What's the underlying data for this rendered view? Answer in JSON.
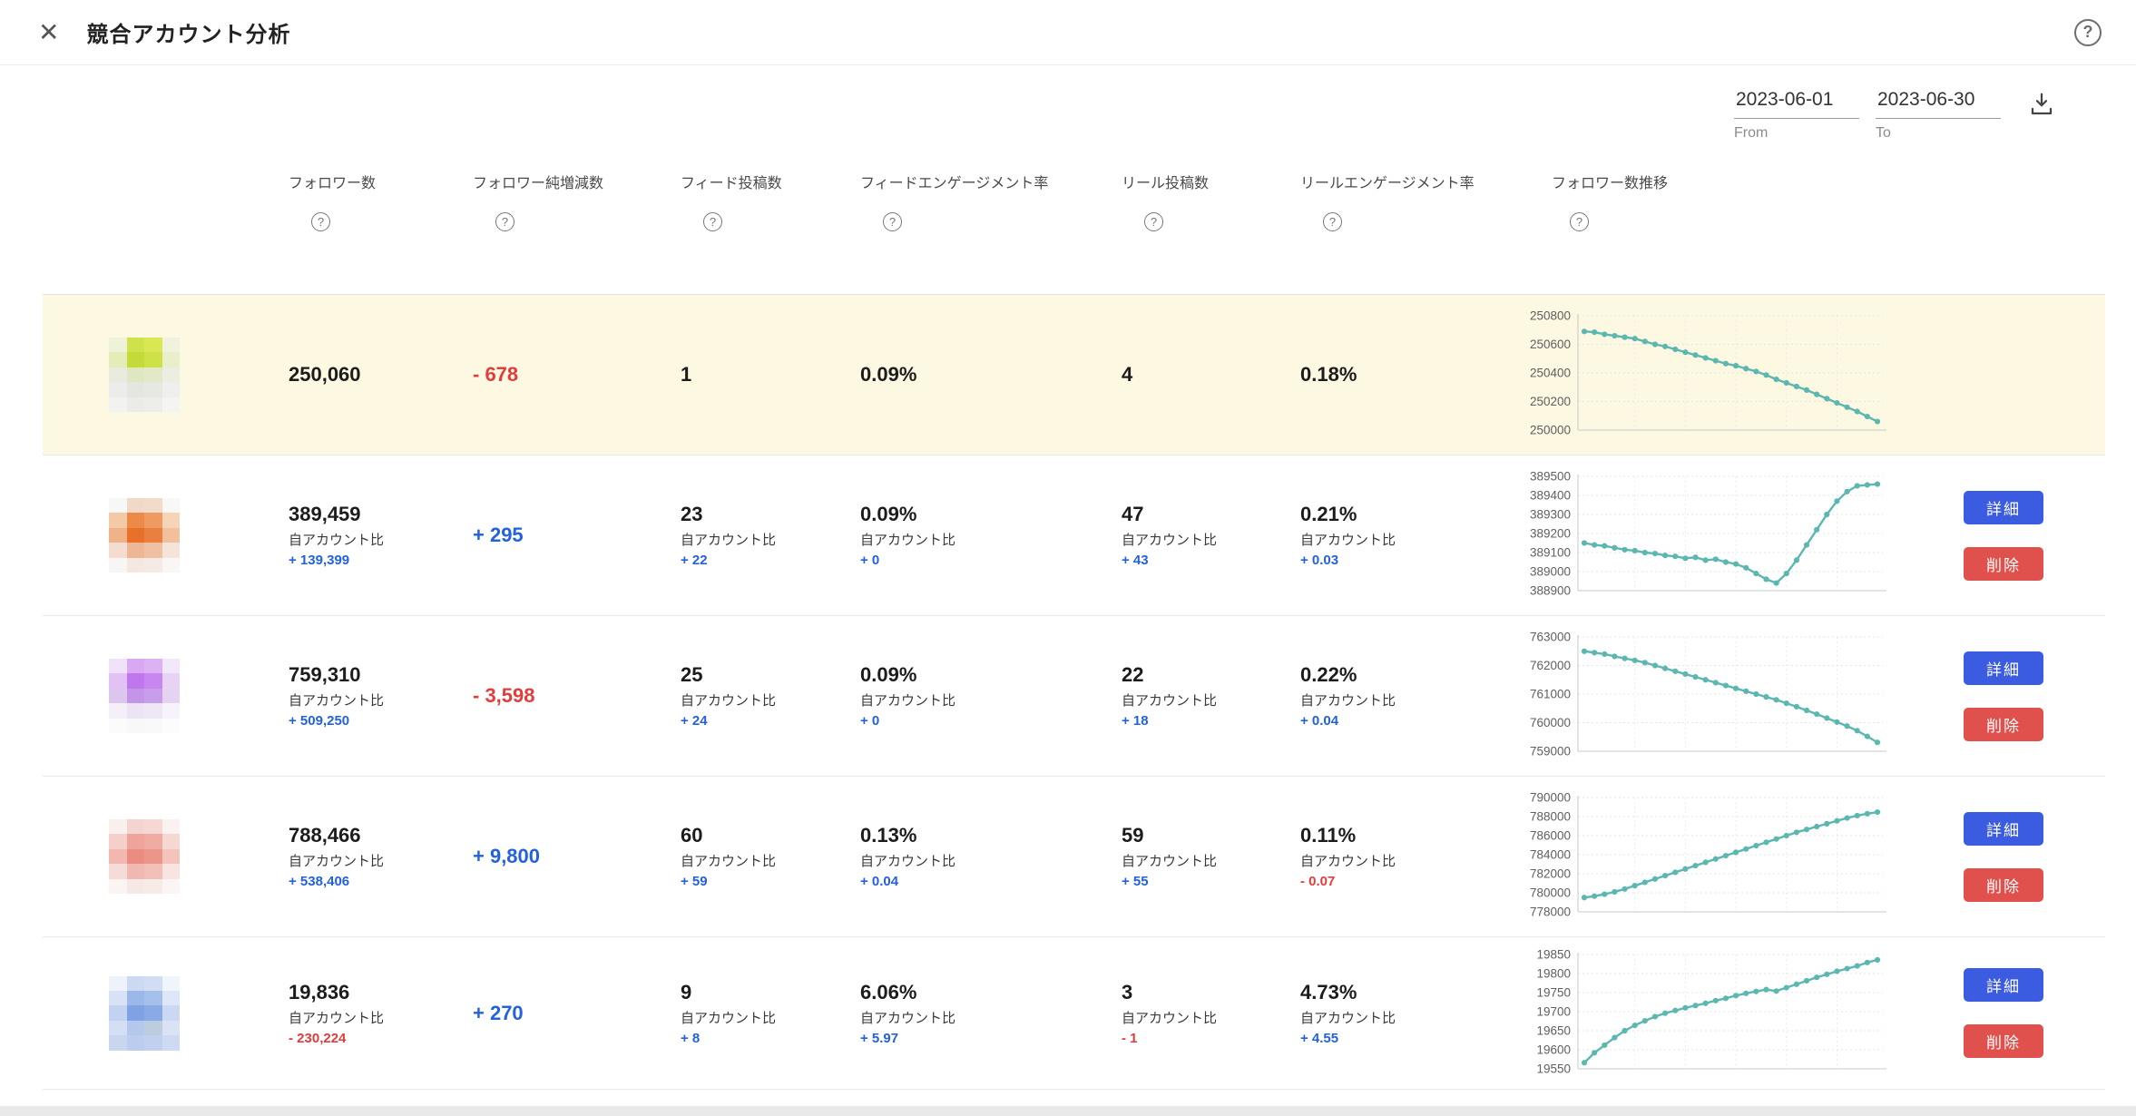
{
  "header": {
    "title": "競合アカウント分析"
  },
  "toolbar": {
    "date_from": "2023-06-01",
    "date_to": "2023-06-30",
    "from_label": "From",
    "to_label": "To"
  },
  "columns": [
    "フォロワー数",
    "フォロワー純増減数",
    "フィード投稿数",
    "フィードエンゲージメント率",
    "リール投稿数",
    "リールエンゲージメント率",
    "フォロワー数推移"
  ],
  "labels": {
    "vs_account": "自アカウント比",
    "detail": "詳細",
    "delete": "削除",
    "help": "?"
  },
  "colors": {
    "accent_blue": "#2361dd",
    "negative_red": "#e23c3c",
    "chart_line": "#5cb7b0",
    "highlight_row": "#fdf8e1",
    "button_blue": "#3b5ce0",
    "button_red": "#e0504d"
  },
  "rows": [
    {
      "type": "own",
      "followers": "250,060",
      "net_change": "- 678",
      "feed_posts": "1",
      "feed_engagement": "0.09%",
      "reel_posts": "4",
      "reel_engagement": "0.18%"
    },
    {
      "followers": "389,459",
      "followers_delta": "+ 139,399",
      "net_change": "+ 295",
      "feed_posts": "23",
      "feed_posts_delta": "+ 22",
      "feed_engagement": "0.09%",
      "feed_engagement_delta": "+ 0",
      "reel_posts": "47",
      "reel_posts_delta": "+ 43",
      "reel_engagement": "0.21%",
      "reel_engagement_delta": "+ 0.03"
    },
    {
      "followers": "759,310",
      "followers_delta": "+ 509,250",
      "net_change": "- 3,598",
      "feed_posts": "25",
      "feed_posts_delta": "+ 24",
      "feed_engagement": "0.09%",
      "feed_engagement_delta": "+ 0",
      "reel_posts": "22",
      "reel_posts_delta": "+ 18",
      "reel_engagement": "0.22%",
      "reel_engagement_delta": "+ 0.04"
    },
    {
      "followers": "788,466",
      "followers_delta": "+ 538,406",
      "net_change": "+ 9,800",
      "feed_posts": "60",
      "feed_posts_delta": "+ 59",
      "feed_engagement": "0.13%",
      "feed_engagement_delta": "+ 0.04",
      "reel_posts": "59",
      "reel_posts_delta": "+ 55",
      "reel_engagement": "0.11%",
      "reel_engagement_delta": "- 0.07"
    },
    {
      "followers": "19,836",
      "followers_delta": "- 230,224",
      "net_change": "+ 270",
      "feed_posts": "9",
      "feed_posts_delta": "+ 8",
      "feed_engagement": "6.06%",
      "feed_engagement_delta": "+ 5.97",
      "reel_posts": "3",
      "reel_posts_delta": "- 1",
      "reel_engagement": "4.73%",
      "reel_engagement_delta": "+ 4.55"
    }
  ],
  "chart_data": [
    {
      "type": "line",
      "title": "フォロワー数推移",
      "ylim": [
        250000,
        250800
      ],
      "ticks": [
        250800,
        250600,
        250400,
        250200,
        250000
      ],
      "values": [
        250690,
        250685,
        250670,
        250660,
        250650,
        250640,
        250620,
        250600,
        250585,
        250565,
        250545,
        250525,
        250505,
        250485,
        250465,
        250450,
        250430,
        250410,
        250385,
        250355,
        250330,
        250305,
        250280,
        250250,
        250220,
        250190,
        250160,
        250130,
        250095,
        250060
      ]
    },
    {
      "type": "line",
      "title": "フォロワー数推移",
      "ylim": [
        388900,
        389500
      ],
      "ticks": [
        389500,
        389400,
        389300,
        389200,
        389100,
        389000,
        388900
      ],
      "values": [
        389150,
        389140,
        389135,
        389125,
        389115,
        389110,
        389100,
        389095,
        389085,
        389080,
        389070,
        389075,
        389060,
        389065,
        389050,
        389040,
        389020,
        388990,
        388960,
        388940,
        388990,
        389060,
        389140,
        389220,
        389300,
        389370,
        389420,
        389450,
        389455,
        389459
      ]
    },
    {
      "type": "line",
      "title": "フォロワー数推移",
      "ylim": [
        759000,
        763000
      ],
      "ticks": [
        763000,
        762000,
        761000,
        760000,
        759000
      ],
      "values": [
        762500,
        762450,
        762400,
        762320,
        762250,
        762180,
        762100,
        762000,
        761900,
        761800,
        761700,
        761600,
        761500,
        761400,
        761300,
        761200,
        761100,
        761000,
        760900,
        760800,
        760680,
        760560,
        760430,
        760300,
        760160,
        760020,
        759880,
        759720,
        759520,
        759310
      ]
    },
    {
      "type": "line",
      "title": "フォロワー数推移",
      "ylim": [
        778000,
        790000
      ],
      "ticks": [
        790000,
        788000,
        786000,
        784000,
        782000,
        780000,
        778000
      ],
      "values": [
        779500,
        779650,
        779850,
        780100,
        780400,
        780750,
        781100,
        781450,
        781800,
        782150,
        782500,
        782850,
        783200,
        783550,
        783900,
        784250,
        784600,
        784950,
        785300,
        785650,
        786000,
        786350,
        786650,
        786950,
        787250,
        787550,
        787850,
        788100,
        788300,
        788466
      ]
    },
    {
      "type": "line",
      "title": "フォロワー数推移",
      "ylim": [
        19550,
        19850
      ],
      "ticks": [
        19850,
        19800,
        19750,
        19700,
        19650,
        19600,
        19550
      ],
      "values": [
        19566,
        19592,
        19612,
        19632,
        19650,
        19664,
        19676,
        19687,
        19696,
        19703,
        19710,
        19716,
        19722,
        19729,
        19735,
        19742,
        19748,
        19753,
        19758,
        19754,
        19763,
        19772,
        19781,
        19790,
        19798,
        19806,
        19813,
        19820,
        19829,
        19836
      ]
    }
  ],
  "avatars": [
    [
      [
        "#eef2d8",
        "#cfe24c",
        "#d9e852",
        "#f0f2dd"
      ],
      [
        "#e4ecb8",
        "#c3da38",
        "#cee146",
        "#e9eecb"
      ],
      [
        "#e9ebdf",
        "#dfe6c2",
        "#e2e8c8",
        "#eceee2"
      ],
      [
        "#ececea",
        "#e4e6e0",
        "#e6e8e2",
        "#efefed"
      ],
      [
        "#f2f2f0",
        "#ebebe8",
        "#ededea",
        "#f4f4f2"
      ]
    ],
    [
      [
        "#f7f7f5",
        "#f0d9c6",
        "#f2dcc9",
        "#f8f8f6"
      ],
      [
        "#f3c9a8",
        "#ec8a4a",
        "#ee9a60",
        "#f5d4b8"
      ],
      [
        "#f0b288",
        "#e8702a",
        "#ea8040",
        "#f2c09c"
      ],
      [
        "#f4ddd0",
        "#eeb694",
        "#efc0a2",
        "#f6e4da"
      ],
      [
        "#f8f6f4",
        "#f4e8e0",
        "#f5eae4",
        "#f9f7f5"
      ]
    ],
    [
      [
        "#f0e2f8",
        "#d8a8f2",
        "#dcb2f4",
        "#f2e8fa"
      ],
      [
        "#e2c2f4",
        "#c077ee",
        "#c886f0",
        "#e8d2f6"
      ],
      [
        "#dcc6ee",
        "#c394e8",
        "#c89eea",
        "#e4d4f2"
      ],
      [
        "#f4f0f8",
        "#ece4f4",
        "#eee8f6",
        "#f6f4fa"
      ],
      [
        "#fbfbfb",
        "#f8f8f8",
        "#f9f9f9",
        "#fcfcfc"
      ]
    ],
    [
      [
        "#f9efed",
        "#f4d4d0",
        "#f5d8d4",
        "#faf2f0"
      ],
      [
        "#f5d0ca",
        "#eea49a",
        "#f0aca2",
        "#f6d8d2"
      ],
      [
        "#f2b8b0",
        "#ea8d80",
        "#ec968a",
        "#f4c4bc"
      ],
      [
        "#f6dcd8",
        "#f0b8b0",
        "#f2c0b8",
        "#f8e4e0"
      ],
      [
        "#faf4f2",
        "#f6e8e5",
        "#f7ebe8",
        "#fbf6f4"
      ]
    ],
    [
      [
        "#eef2fa",
        "#ccd9f2",
        "#d2ddf4",
        "#f0f4fb"
      ],
      [
        "#d8e2f6",
        "#9cb8ea",
        "#a6c0ec",
        "#dee6f8"
      ],
      [
        "#c2d2f0",
        "#7fa2e4",
        "#8aaae6",
        "#cad8f2"
      ],
      [
        "#d4def4",
        "#b4c8ee",
        "#bccede",
        "#dae2f6"
      ],
      [
        "#c8d6f0",
        "#bcccee",
        "#c0d0ee",
        "#cedaf2"
      ]
    ]
  ]
}
